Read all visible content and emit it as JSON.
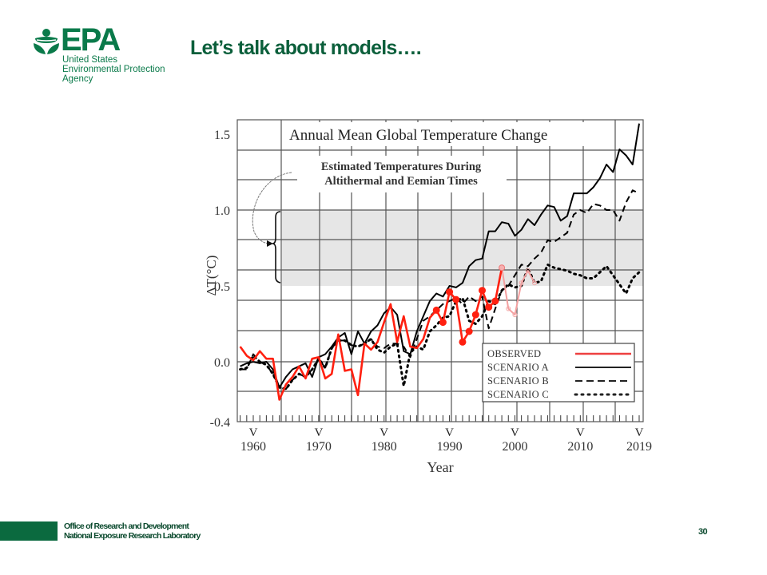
{
  "header": {
    "logo": {
      "mark": "EPA",
      "lines": [
        "United States",
        "Environmental Protection",
        "Agency"
      ],
      "color": "#0a7a4a"
    },
    "title": "Let’s talk about models…."
  },
  "footer": {
    "lines": [
      "Office of Research and Development",
      "National Exposure Research Laboratory"
    ],
    "page_number": "30",
    "accent_color": "#0b6a3f"
  },
  "chart_data": {
    "type": "line",
    "title": "Annual Mean Global Temperature Change",
    "xlabel": "Year",
    "ylabel": "ΔT(°C)",
    "xlim": [
      1958,
      2019.6
    ],
    "ylim": [
      -0.4,
      1.6
    ],
    "x_ticks": [
      1960,
      1970,
      1980,
      1990,
      2000,
      2010,
      2019
    ],
    "x_tick_labels": [
      "1960",
      "1970",
      "1980",
      "1990",
      "2000",
      "2010",
      "2019"
    ],
    "y_ticks": [
      1.5,
      1.0,
      0.5,
      0.0,
      -0.4
    ],
    "y_tick_labels": [
      "1.5",
      "1.0",
      "0.5",
      "0.0",
      "-0.4"
    ],
    "grid": true,
    "shaded_band": {
      "label": "Estimated Temperatures During Altithermal and Eemian Times",
      "y_range": [
        0.5,
        1.0
      ],
      "color": "#e6e6e6"
    },
    "legend": {
      "placement": "bottom-right",
      "entries": [
        "OBSERVED",
        "SCENARIO A",
        "SCENARIO B",
        "SCENARIO C"
      ]
    },
    "series": [
      {
        "name": "OBSERVED",
        "style": "solid",
        "color": "#ff2010",
        "x": [
          1958,
          1959,
          1960,
          1961,
          1962,
          1963,
          1964,
          1965,
          1966,
          1967,
          1968,
          1969,
          1970,
          1971,
          1972,
          1973,
          1974,
          1975,
          1976,
          1977,
          1978,
          1979,
          1980,
          1981,
          1982,
          1983,
          1984,
          1985,
          1986,
          1987,
          1988,
          1989,
          1990,
          1991,
          1992,
          1993,
          1994,
          1995,
          1996,
          1997,
          1998
        ],
        "y": [
          0.1,
          0.04,
          0.01,
          0.07,
          0.02,
          0.02,
          -0.25,
          -0.15,
          -0.1,
          -0.03,
          -0.11,
          0.02,
          0.03,
          -0.11,
          -0.08,
          0.18,
          -0.06,
          -0.05,
          -0.22,
          0.12,
          0.08,
          0.13,
          0.26,
          0.38,
          0.13,
          0.3,
          0.1,
          0.09,
          0.15,
          0.29,
          0.34,
          0.26,
          0.46,
          0.41,
          0.13,
          0.2,
          0.31,
          0.47,
          0.36,
          0.4,
          0.62
        ],
        "markers_from": 1988
      },
      {
        "name": "OBSERVED (faded continuation)",
        "style": "solid",
        "color": "#f4a0a0",
        "x": [
          1998,
          1999,
          2000,
          2001,
          2002,
          2003
        ],
        "y": [
          0.62,
          0.35,
          0.31,
          0.52,
          0.6,
          0.52
        ]
      },
      {
        "name": "SCENARIO A",
        "style": "solid",
        "color": "#000000",
        "x": [
          1958,
          1959,
          1960,
          1961,
          1962,
          1963,
          1964,
          1965,
          1966,
          1967,
          1968,
          1969,
          1970,
          1971,
          1972,
          1973,
          1974,
          1975,
          1976,
          1977,
          1978,
          1979,
          1980,
          1981,
          1982,
          1983,
          1984,
          1985,
          1986,
          1987,
          1988,
          1989,
          1990,
          1991,
          1992,
          1993,
          1994,
          1995,
          1996,
          1997,
          1998,
          1999,
          2000,
          2001,
          2002,
          2003,
          2004,
          2005,
          2006,
          2007,
          2008,
          2009,
          2010,
          2011,
          2012,
          2013,
          2014,
          2015,
          2016,
          2017,
          2018,
          2019
        ],
        "y": [
          -0.03,
          -0.01,
          0.0,
          -0.01,
          0.0,
          -0.05,
          -0.17,
          -0.1,
          -0.05,
          -0.03,
          -0.01,
          -0.1,
          0.03,
          0.05,
          0.1,
          0.16,
          0.19,
          0.05,
          0.2,
          0.12,
          0.2,
          0.24,
          0.32,
          0.36,
          0.31,
          0.07,
          0.05,
          0.2,
          0.3,
          0.4,
          0.45,
          0.43,
          0.5,
          0.49,
          0.52,
          0.63,
          0.67,
          0.68,
          0.86,
          0.86,
          0.92,
          0.91,
          0.83,
          0.87,
          0.94,
          0.9,
          0.97,
          1.03,
          1.02,
          0.93,
          0.96,
          1.11,
          1.11,
          1.11,
          1.15,
          1.21,
          1.3,
          1.25,
          1.4,
          1.36,
          1.3,
          1.57
        ]
      },
      {
        "name": "SCENARIO B",
        "style": "dashed",
        "color": "#000000",
        "x": [
          1958,
          1959,
          1960,
          1961,
          1962,
          1963,
          1964,
          1965,
          1966,
          1967,
          1968,
          1969,
          1970,
          1971,
          1972,
          1973,
          1974,
          1975,
          1976,
          1977,
          1978,
          1979,
          1980,
          1981,
          1982,
          1983,
          1984,
          1985,
          1986,
          1987,
          1988,
          1989,
          1990,
          1991,
          1992,
          1993,
          1994,
          1995,
          1996,
          1997,
          1998,
          1999,
          2000,
          2001,
          2002,
          2003,
          2004,
          2005,
          2006,
          2007,
          2008,
          2009,
          2010,
          2011,
          2012,
          2013,
          2014,
          2015,
          2016,
          2017,
          2018,
          2019
        ],
        "y": [
          -0.05,
          -0.05,
          0.05,
          0.0,
          -0.02,
          -0.08,
          -0.17,
          -0.18,
          -0.12,
          -0.08,
          -0.1,
          -0.05,
          0.02,
          -0.04,
          0.09,
          0.14,
          0.14,
          0.11,
          0.1,
          0.12,
          0.15,
          0.1,
          0.09,
          0.12,
          0.12,
          0.1,
          0.03,
          0.15,
          0.27,
          0.3,
          0.34,
          0.38,
          0.4,
          0.42,
          0.38,
          0.43,
          0.4,
          0.43,
          0.22,
          0.35,
          0.47,
          0.5,
          0.57,
          0.64,
          0.63,
          0.68,
          0.72,
          0.8,
          0.79,
          0.82,
          0.85,
          0.97,
          1.0,
          0.98,
          1.04,
          1.03,
          1.0,
          1.0,
          0.93,
          1.05,
          1.13,
          1.11
        ]
      },
      {
        "name": "SCENARIO C",
        "style": "dotted",
        "color": "#000000",
        "x": [
          1958,
          1959,
          1960,
          1961,
          1962,
          1963,
          1964,
          1965,
          1966,
          1967,
          1968,
          1969,
          1970,
          1971,
          1972,
          1973,
          1974,
          1975,
          1976,
          1977,
          1978,
          1979,
          1980,
          1981,
          1982,
          1983,
          1984,
          1985,
          1986,
          1987,
          1988,
          1989,
          1990,
          1991,
          1992,
          1993,
          1994,
          1995,
          1996,
          1997,
          1998,
          1999,
          2000,
          2001,
          2002,
          2003,
          2004,
          2005,
          2006,
          2007,
          2008,
          2009,
          2010,
          2011,
          2012,
          2013,
          2014,
          2015,
          2016,
          2017,
          2018,
          2019
        ],
        "y": [
          -0.05,
          -0.04,
          0.04,
          0.0,
          -0.02,
          -0.08,
          -0.17,
          -0.18,
          -0.12,
          -0.08,
          -0.1,
          -0.05,
          0.02,
          -0.04,
          0.09,
          0.14,
          0.14,
          0.11,
          0.1,
          0.12,
          0.15,
          0.08,
          0.06,
          0.1,
          0.12,
          -0.16,
          0.06,
          0.1,
          0.08,
          0.2,
          0.24,
          0.29,
          0.3,
          0.4,
          0.42,
          0.27,
          0.25,
          0.3,
          0.4,
          0.38,
          0.47,
          0.51,
          0.49,
          0.5,
          0.62,
          0.52,
          0.53,
          0.64,
          0.62,
          0.61,
          0.6,
          0.58,
          0.57,
          0.55,
          0.55,
          0.59,
          0.63,
          0.57,
          0.51,
          0.45,
          0.55,
          0.59
        ]
      }
    ]
  }
}
